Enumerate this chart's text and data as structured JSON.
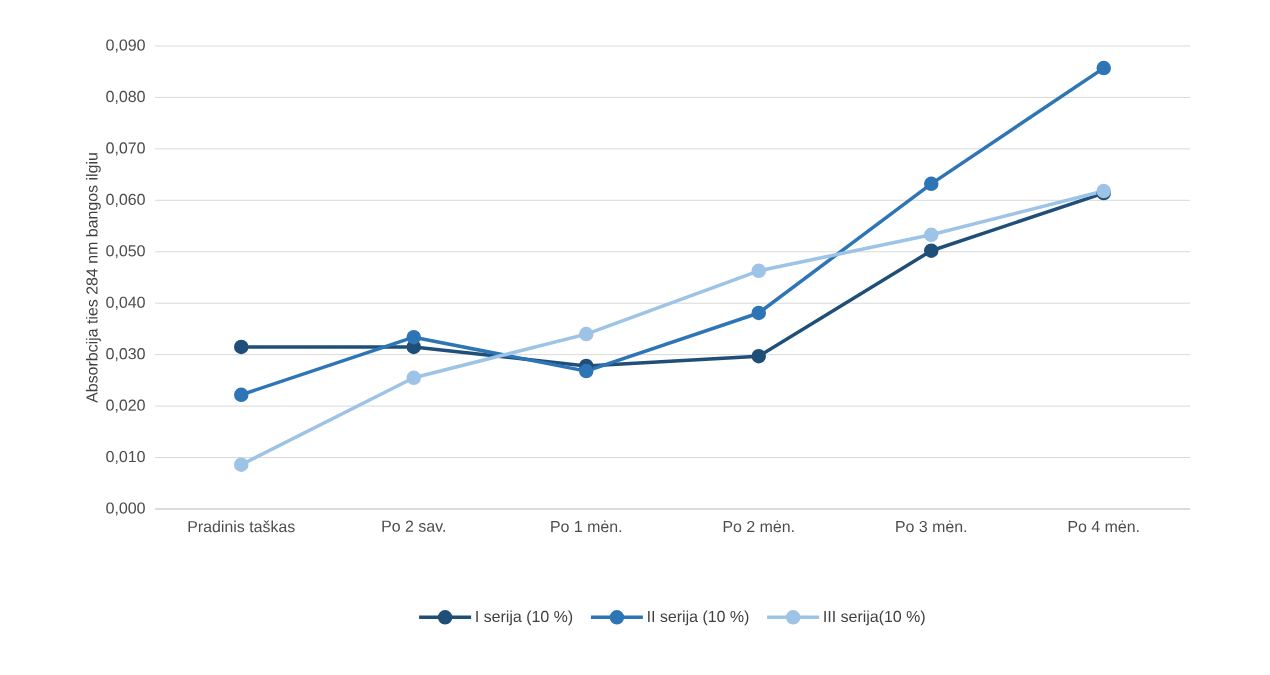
{
  "chart_data": {
    "type": "line",
    "ylabel": "Absorbcija ties 284 nm bangos ilgiu",
    "categories": [
      "Pradinis taškas",
      "Po 2 sav.",
      "Po 1 mėn.",
      "Po 2 mėn.",
      "Po 3 mėn.",
      "Po 4 mėn."
    ],
    "series": [
      {
        "name": "I serija (10 %)",
        "color": "#1f4e79",
        "values": [
          0.0315,
          0.0315,
          0.0278,
          0.0297,
          0.0502,
          0.0614
        ]
      },
      {
        "name": "II serija (10 %)",
        "color": "#2e75b6",
        "values": [
          0.0222,
          0.0334,
          0.0268,
          0.0381,
          0.0632,
          0.0857
        ]
      },
      {
        "name": "III serija(10 %)",
        "color": "#9dc3e6",
        "values": [
          0.0086,
          0.0255,
          0.034,
          0.0463,
          0.0533,
          0.0618
        ]
      }
    ],
    "ylim": [
      0,
      0.09
    ],
    "yticks": [
      {
        "value": 0,
        "label": "0,000"
      },
      {
        "value": 0.01,
        "label": "0,010"
      },
      {
        "value": 0.02,
        "label": "0,020"
      },
      {
        "value": 0.03,
        "label": "0,030"
      },
      {
        "value": 0.04,
        "label": "0,040"
      },
      {
        "value": 0.05,
        "label": "0,050"
      },
      {
        "value": 0.06,
        "label": "0,060"
      },
      {
        "value": 0.07,
        "label": "0,070"
      },
      {
        "value": 0.08,
        "label": "0,080"
      },
      {
        "value": 0.09,
        "label": "0,090"
      }
    ],
    "grid": "y",
    "legend": "bottom",
    "marker": "circle",
    "line_style": "solid"
  }
}
